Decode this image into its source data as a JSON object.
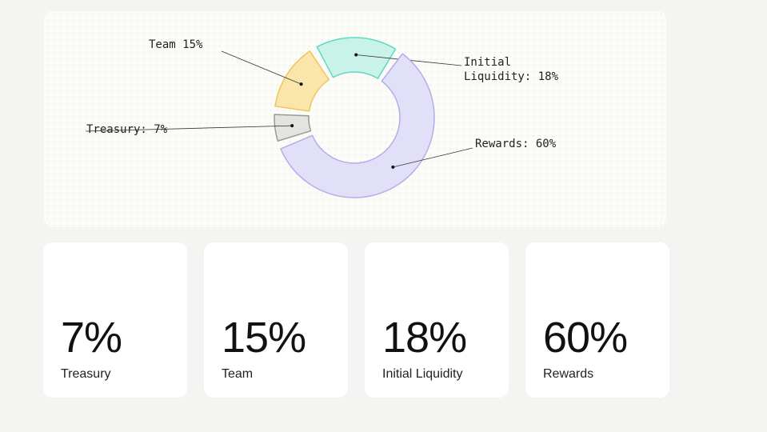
{
  "chart_data": {
    "type": "pie",
    "categories": [
      "Treasury",
      "Team",
      "Initial Liquidity",
      "Rewards"
    ],
    "values": [
      7,
      15,
      18,
      60
    ],
    "value_labels": [
      "Treasury: 7%",
      "Team 15%",
      "Initial Liquidity: 18%",
      "Rewards: 60%"
    ],
    "card_labels": [
      "7%",
      "15%",
      "18%",
      "60%"
    ],
    "colors": [
      "#e3e3e1",
      "#fae6ab",
      "#c9f2e8",
      "#e2e0f8"
    ],
    "stroke_colors": [
      "#9a9a98",
      "#f0c65a",
      "#5fd8c2",
      "#b3ade9"
    ]
  }
}
